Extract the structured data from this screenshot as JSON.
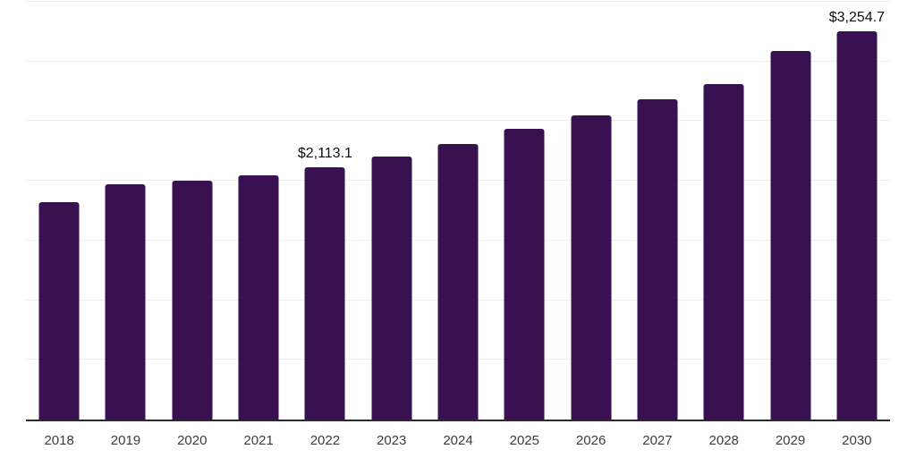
{
  "chart_data": {
    "type": "bar",
    "categories": [
      "2018",
      "2019",
      "2020",
      "2021",
      "2022",
      "2023",
      "2024",
      "2025",
      "2026",
      "2027",
      "2028",
      "2029",
      "2030"
    ],
    "values": [
      1820,
      1968,
      2002,
      2044,
      2113.1,
      2203,
      2307,
      2434,
      2551,
      2686,
      2813,
      3088,
      3254.7
    ],
    "value_labels": {
      "2022": "$2,113.1",
      "2030": "$3,254.7"
    },
    "ylim": [
      0,
      3500
    ],
    "gridline_step": 500,
    "grid": true,
    "legend": "none",
    "y_axis_tick_labels": "none",
    "bar_color": "#391151",
    "axis_line_color": "#2a2a2a",
    "gridline_color": "#efefef",
    "value_label_color": "#0d0d0d",
    "tick_label_color": "#3c3c3c",
    "background_color": "#ffffff"
  }
}
